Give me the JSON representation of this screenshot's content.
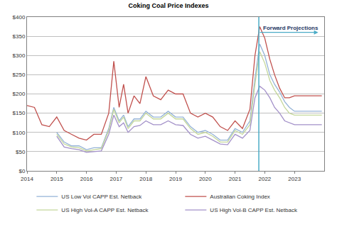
{
  "chart_data": {
    "type": "line",
    "title": "Coking Coal Price Indexes",
    "x": [
      2014.0,
      2014.25,
      2014.5,
      2014.75,
      2015.0,
      2015.25,
      2015.5,
      2015.75,
      2016.0,
      2016.25,
      2016.5,
      2016.75,
      2016.92,
      2017.1,
      2017.25,
      2017.4,
      2017.6,
      2017.8,
      2018.0,
      2018.25,
      2018.5,
      2018.75,
      2019.0,
      2019.25,
      2019.5,
      2019.75,
      2020.0,
      2020.25,
      2020.5,
      2020.75,
      2021.0,
      2021.25,
      2021.5,
      2021.67,
      2021.83,
      2022.0,
      2022.17,
      2022.33,
      2022.5,
      2022.67,
      2022.83,
      2023.0,
      2023.25,
      2023.5,
      2023.75,
      2023.92
    ],
    "series": [
      {
        "name": "US Low Vol CAPP Est. Netback",
        "color": "#95b3d7",
        "values": [
          null,
          null,
          null,
          null,
          100,
          75,
          65,
          65,
          55,
          60,
          60,
          110,
          165,
          130,
          145,
          115,
          135,
          135,
          155,
          140,
          140,
          155,
          140,
          140,
          115,
          100,
          105,
          95,
          80,
          80,
          110,
          100,
          130,
          240,
          330,
          300,
          250,
          225,
          205,
          180,
          165,
          155,
          155,
          155,
          155,
          155
        ]
      },
      {
        "name": "Australian Coking Index",
        "color": "#c0504d",
        "values": [
          170,
          165,
          120,
          115,
          140,
          105,
          95,
          85,
          80,
          95,
          95,
          150,
          285,
          165,
          225,
          150,
          195,
          175,
          245,
          195,
          185,
          210,
          200,
          200,
          150,
          140,
          150,
          140,
          115,
          105,
          130,
          110,
          160,
          300,
          375,
          345,
          290,
          250,
          215,
          190,
          190,
          195,
          195,
          195,
          195,
          195
        ]
      },
      {
        "name": "US High Vol-A CAPP Est. Netback",
        "color": "#c4d79b",
        "values": [
          null,
          null,
          null,
          null,
          95,
          70,
          62,
          60,
          52,
          55,
          58,
          105,
          160,
          125,
          140,
          110,
          130,
          130,
          150,
          135,
          135,
          150,
          135,
          135,
          110,
          95,
          100,
          90,
          75,
          75,
          105,
          95,
          120,
          225,
          310,
          280,
          235,
          210,
          190,
          165,
          150,
          145,
          145,
          145,
          145,
          145
        ]
      },
      {
        "name": "US High Vol-B CAPP Est. Netback",
        "color": "#a391c9",
        "values": [
          null,
          null,
          null,
          null,
          90,
          62,
          58,
          55,
          48,
          50,
          52,
          95,
          145,
          115,
          125,
          100,
          115,
          118,
          130,
          120,
          120,
          130,
          120,
          118,
          95,
          85,
          90,
          80,
          70,
          68,
          95,
          85,
          105,
          190,
          220,
          210,
          190,
          165,
          150,
          130,
          125,
          120,
          120,
          120,
          120,
          120
        ]
      }
    ],
    "xlim": [
      2014,
      2024
    ],
    "xticks": [
      2014,
      2015,
      2016,
      2017,
      2018,
      2019,
      2020,
      2021,
      2022,
      2023
    ],
    "ylim": [
      0,
      400
    ],
    "yticks": [
      {
        "value": 0,
        "label": "$0"
      },
      {
        "value": 50,
        "label": "$50"
      },
      {
        "value": 100,
        "label": "$100"
      },
      {
        "value": 150,
        "label": "$150"
      },
      {
        "value": 200,
        "label": "$200"
      },
      {
        "value": 250,
        "label": "$250"
      },
      {
        "value": 300,
        "label": "$300"
      },
      {
        "value": 350,
        "label": "$350"
      },
      {
        "value": 400,
        "label": "$400"
      }
    ],
    "grid": true,
    "legend": "bottom",
    "forward_projections": {
      "label": "Forward Projections",
      "start": 2021.8,
      "end": 2023.8,
      "y": 360
    }
  }
}
